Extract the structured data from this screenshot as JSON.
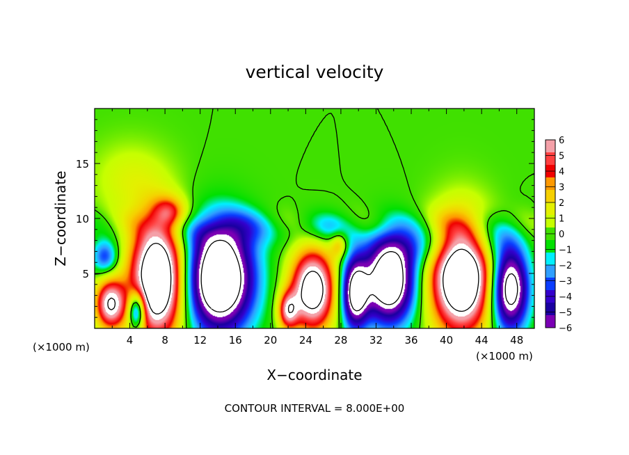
{
  "chart_data": {
    "type": "heatmap",
    "title": "vertical velocity",
    "xlabel": "X−coordinate",
    "ylabel": "Z−coordinate",
    "x_unit_left": "(×1000 m)",
    "x_unit_right": "(×1000 m)",
    "footer": "CONTOUR INTERVAL = 8.000E+00",
    "xlim": [
      0,
      50
    ],
    "ylim": [
      0,
      20
    ],
    "xticks": [
      4,
      8,
      12,
      16,
      20,
      24,
      28,
      32,
      36,
      40,
      44,
      48
    ],
    "yticks": [
      5,
      10,
      15
    ],
    "colorbar": {
      "levels": [
        "6",
        "5",
        "4",
        "3",
        "2",
        "1",
        "0",
        "−1",
        "−2",
        "−3",
        "−4",
        "−5",
        "−6"
      ],
      "colors": [
        "#f4a0a8",
        "#ff4040",
        "#f00000",
        "#ff9900",
        "#f6d000",
        "#e4f000",
        "#c6ff00",
        "#40e000",
        "#00e000",
        "#00f0ff",
        "#2f9fff",
        "#0a3cff",
        "#3300cc",
        "#1a00a0",
        "#7a00b4"
      ]
    },
    "cells": [
      {
        "x": 7.2,
        "y": 4.5,
        "rx": 3.2,
        "ry": 5.5,
        "w": 12
      },
      {
        "x": 1.8,
        "y": 2.2,
        "rx": 1.8,
        "ry": 2.4,
        "w": 8
      },
      {
        "x": 14.2,
        "y": 4.5,
        "rx": 4.0,
        "ry": 5.0,
        "w": -12
      },
      {
        "x": 4.8,
        "y": 1.6,
        "rx": 1.0,
        "ry": 1.8,
        "w": -7
      },
      {
        "x": 24.8,
        "y": 3.5,
        "rx": 2.6,
        "ry": 3.8,
        "w": 10
      },
      {
        "x": 22.0,
        "y": 1.6,
        "rx": 1.2,
        "ry": 1.8,
        "w": 6
      },
      {
        "x": 29.6,
        "y": 3.2,
        "rx": 1.6,
        "ry": 3.4,
        "w": -9
      },
      {
        "x": 33.5,
        "y": 4.3,
        "rx": 3.0,
        "ry": 4.0,
        "w": -11
      },
      {
        "x": 41.7,
        "y": 4.7,
        "rx": 3.6,
        "ry": 5.2,
        "w": 12
      },
      {
        "x": 47.2,
        "y": 3.6,
        "rx": 2.2,
        "ry": 4.0,
        "w": -10
      },
      {
        "x": 1.2,
        "y": 6.5,
        "rx": 1.5,
        "ry": 1.6,
        "w": -4
      },
      {
        "x": 8.5,
        "y": 10.5,
        "rx": 2.0,
        "ry": 1.5,
        "w": 4
      },
      {
        "x": 27.8,
        "y": 7.6,
        "rx": 1.0,
        "ry": 1.2,
        "w": 3
      },
      {
        "x": 37.0,
        "y": 7.5,
        "rx": 5.0,
        "ry": 2.0,
        "w": -2.5
      },
      {
        "x": 15.0,
        "y": 9.0,
        "rx": 6.0,
        "ry": 1.8,
        "w": -2
      },
      {
        "x": 4.0,
        "y": 13.5,
        "rx": 4.5,
        "ry": 3.5,
        "w": 1.5
      },
      {
        "x": 26.0,
        "y": 9.0,
        "rx": 3.5,
        "ry": 1.5,
        "w": -2
      },
      {
        "x": 45.0,
        "y": 8.0,
        "rx": 3.0,
        "ry": 2.0,
        "w": -2
      }
    ]
  }
}
